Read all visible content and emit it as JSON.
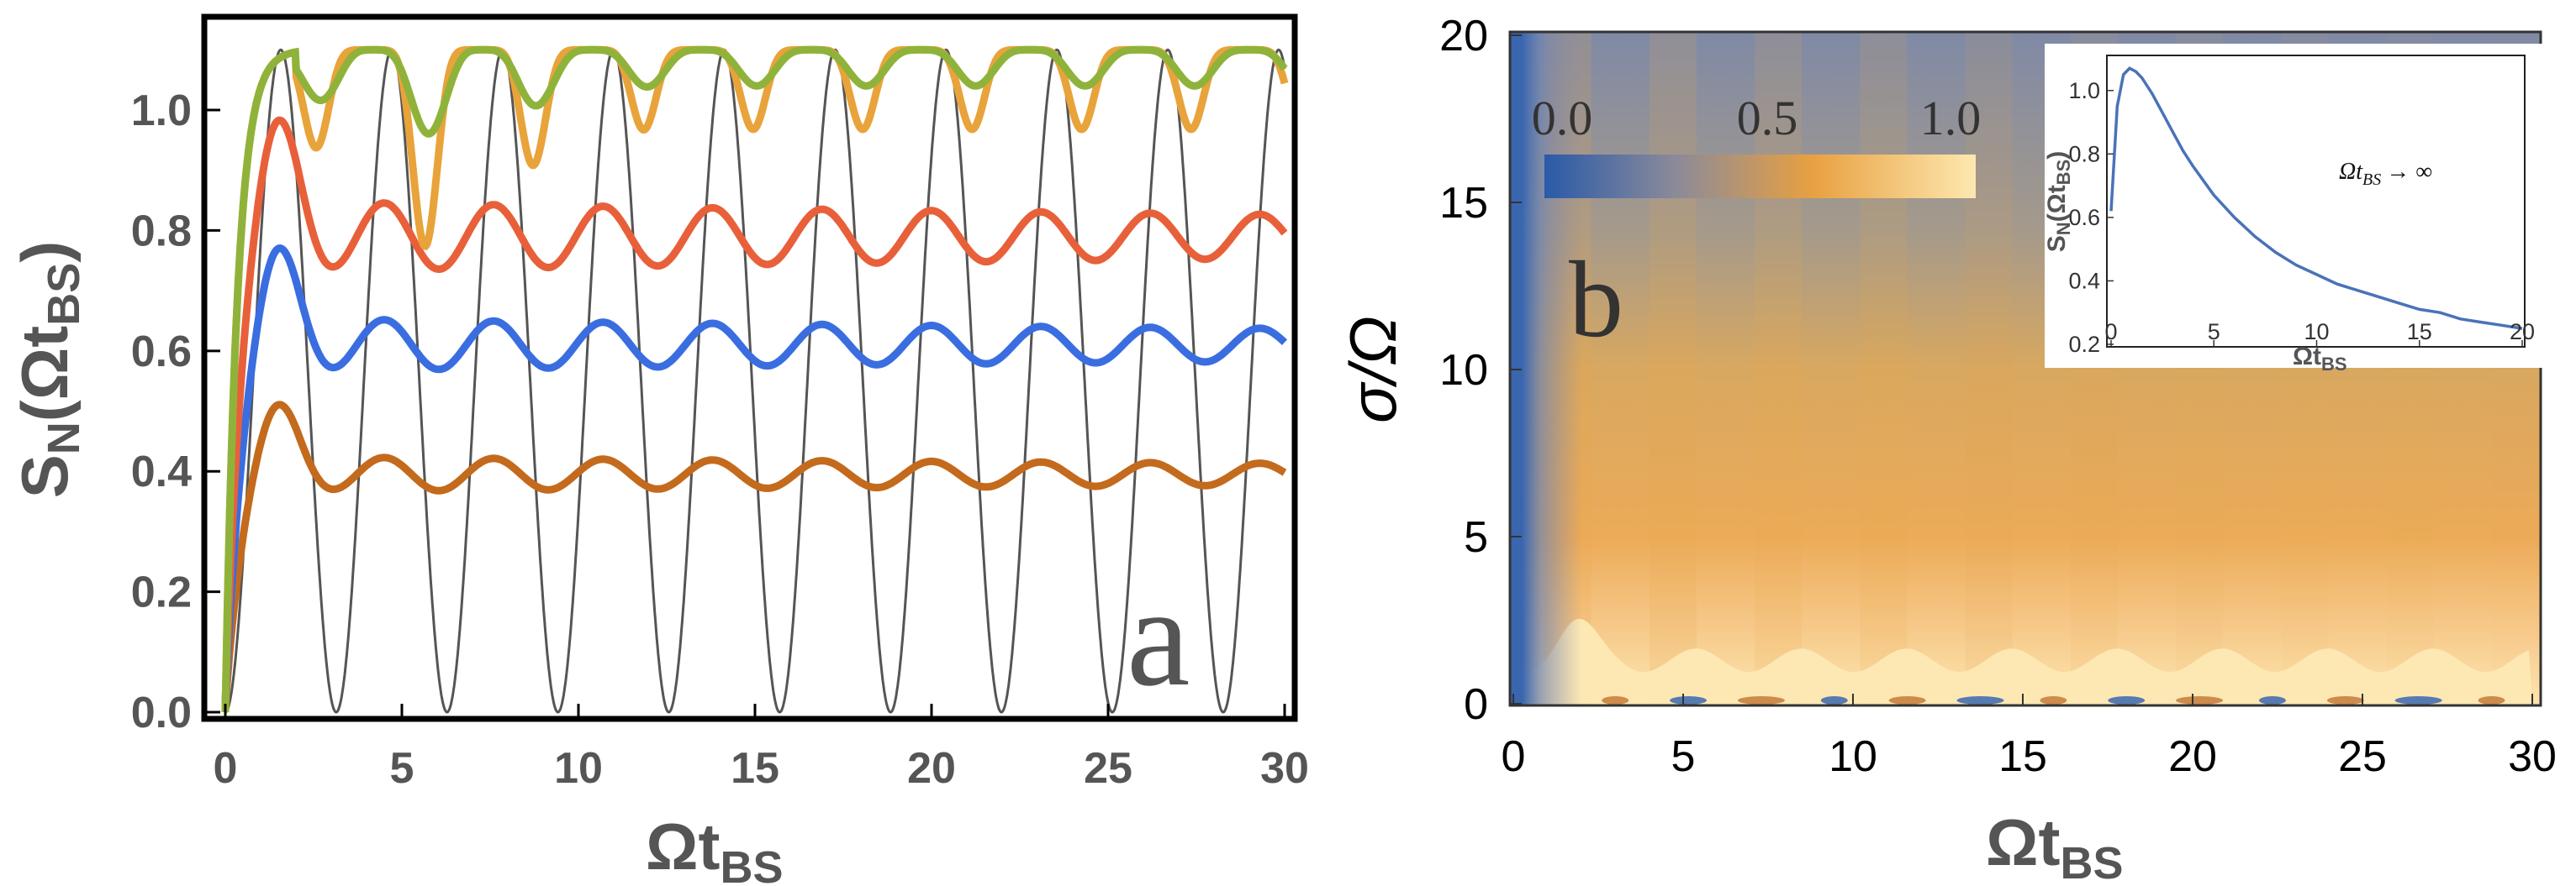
{
  "chart_data": [
    {
      "type": "line",
      "panel_label": "a",
      "xlabel_main": "Ωt",
      "xlabel_sub": "BS",
      "ylabel_main": "S",
      "ylabel_sub_n": "N",
      "ylabel_arg_open": "(Ωt",
      "ylabel_arg_sub": "BS",
      "ylabel_arg_close": ")",
      "xlim": [
        0,
        30
      ],
      "ylim": [
        0,
        1.12
      ],
      "xticks": [
        "0",
        "5",
        "10",
        "15",
        "20",
        "25",
        "30"
      ],
      "yticks": [
        "0.0",
        "0.2",
        "0.4",
        "0.6",
        "0.8",
        "1.0"
      ],
      "series": [
        {
          "name": "gray",
          "color": "#555555",
          "asymptote": 0.55,
          "amp": 0.55,
          "period": 3.14,
          "peak": 1.1
        },
        {
          "name": "orange-yellow",
          "color": "#e8a33a",
          "asymptote": 1.05,
          "peak": 1.1,
          "period": 3.1
        },
        {
          "name": "green",
          "color": "#8fb33a",
          "asymptote": 1.06,
          "peak": 1.1,
          "period": 3.1
        },
        {
          "name": "red",
          "color": "#e8603a",
          "asymptote": 0.79,
          "peak": 0.97,
          "period": 3.1
        },
        {
          "name": "blue",
          "color": "#3a6ee0",
          "asymptote": 0.61,
          "peak": 0.77,
          "period": 3.1
        },
        {
          "name": "brown",
          "color": "#c46a1c",
          "asymptote": 0.395,
          "peak": 0.51,
          "period": 3.1
        }
      ]
    },
    {
      "type": "heatmap",
      "panel_label": "b",
      "xlabel_main": "Ωt",
      "xlabel_sub": "BS",
      "ylabel": "σ/Ω",
      "xlim": [
        0,
        30
      ],
      "ylim": [
        0,
        20
      ],
      "xticks": [
        "0",
        "5",
        "10",
        "15",
        "20",
        "25",
        "30"
      ],
      "yticks": [
        "0",
        "5",
        "10",
        "15",
        "20"
      ],
      "colorbar": {
        "ticks": [
          "0.0",
          "0.5",
          "1.0"
        ],
        "colors": [
          "#2a5aa8",
          "#8a8a9a",
          "#e8a040",
          "#fde8b0"
        ]
      },
      "inset": {
        "type": "line",
        "annotation": "Ωt",
        "annotation_sub": "BS",
        "annotation_tail": "→ ∞",
        "xlabel_main": "Ωt",
        "xlabel_sub": "BS",
        "ylabel_main": "S",
        "ylabel_sub_n": "N",
        "ylabel_arg_open": "(Ωt",
        "ylabel_arg_sub": "BS",
        "ylabel_arg_close": ")",
        "xlim": [
          0,
          20
        ],
        "ylim": [
          0.2,
          1.1
        ],
        "xticks": [
          "0",
          "5",
          "10",
          "15",
          "20"
        ],
        "yticks": [
          "0.2",
          "0.4",
          "0.6",
          "0.8",
          "1.0"
        ],
        "x": [
          0,
          0.3,
          0.6,
          0.9,
          1.2,
          1.5,
          2,
          2.5,
          3,
          3.5,
          4,
          5,
          6,
          7,
          8,
          9,
          10,
          11,
          12,
          13,
          14,
          15,
          16,
          17,
          18,
          19,
          20
        ],
        "y": [
          0.62,
          0.95,
          1.05,
          1.07,
          1.06,
          1.04,
          0.99,
          0.93,
          0.87,
          0.81,
          0.76,
          0.67,
          0.6,
          0.54,
          0.49,
          0.45,
          0.42,
          0.39,
          0.37,
          0.35,
          0.33,
          0.31,
          0.3,
          0.28,
          0.27,
          0.26,
          0.25
        ],
        "color": "#4a72b8"
      }
    }
  ]
}
